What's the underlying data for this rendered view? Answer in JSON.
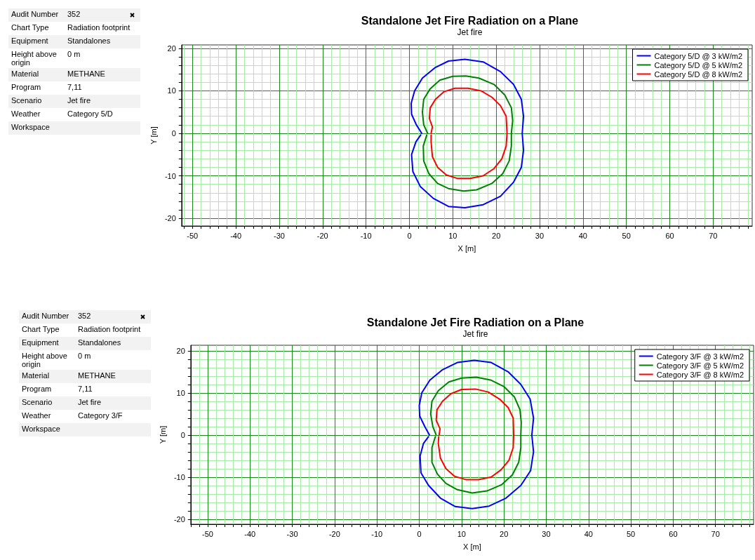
{
  "chart_data": [
    {
      "type": "other",
      "cell_labels": [
        [
          "Audit Number",
          "352"
        ],
        [
          "Chart Type",
          "Radiation footprint"
        ],
        [
          "Equipment",
          "Standalones"
        ],
        [
          "Height above origin",
          "0 m"
        ],
        [
          "Material",
          "METHANE"
        ],
        [
          "Program",
          "7,11"
        ],
        [
          "Scenario",
          "Jet fire"
        ],
        [
          "Weather",
          "Category 5/D"
        ],
        [
          "Workspace",
          null
        ]
      ]
    },
    {
      "type": "line",
      "title": "Standalone Jet Fire Radiation on a Plane",
      "subtitle": "Jet fire",
      "xlabel": "X [m]",
      "ylabel": "Y [m]",
      "xlim": [
        -52.5,
        79
      ],
      "ylim": [
        -21.8,
        20.8
      ],
      "xticks": [
        {
          "value": -52,
          "label": null
        },
        -50,
        {
          "value": -48,
          "label": null
        },
        {
          "value": -46,
          "label": null
        },
        {
          "value": -44,
          "label": null
        },
        {
          "value": -42,
          "label": null
        },
        -40,
        {
          "value": -38,
          "label": null
        },
        {
          "value": -36,
          "label": null
        },
        {
          "value": -34,
          "label": null
        },
        {
          "value": -32,
          "label": null
        },
        -30,
        {
          "value": -28,
          "label": null
        },
        {
          "value": -26,
          "label": null
        },
        {
          "value": -24,
          "label": null
        },
        {
          "value": -22,
          "label": null
        },
        -20,
        {
          "value": -18,
          "label": null
        },
        {
          "value": -16,
          "label": null
        },
        {
          "value": -14,
          "label": null
        },
        {
          "value": -12,
          "label": null
        },
        -10,
        {
          "value": -8,
          "label": null
        },
        {
          "value": -6,
          "label": null
        },
        {
          "value": -4,
          "label": null
        },
        {
          "value": -2,
          "label": null
        },
        0,
        {
          "value": 2,
          "label": null
        },
        {
          "value": 4,
          "label": null
        },
        {
          "value": 6,
          "label": null
        },
        {
          "value": 8,
          "label": null
        },
        10,
        {
          "value": 12,
          "label": null
        },
        {
          "value": 14,
          "label": null
        },
        {
          "value": 16,
          "label": null
        },
        {
          "value": 18,
          "label": null
        },
        20,
        {
          "value": 22,
          "label": null
        },
        {
          "value": 24,
          "label": null
        },
        {
          "value": 26,
          "label": null
        },
        {
          "value": 28,
          "label": null
        },
        30,
        {
          "value": 32,
          "label": null
        },
        {
          "value": 34,
          "label": null
        },
        {
          "value": 36,
          "label": null
        },
        {
          "value": 38,
          "label": null
        },
        40,
        {
          "value": 42,
          "label": null
        },
        {
          "value": 44,
          "label": null
        },
        {
          "value": 46,
          "label": null
        },
        {
          "value": 48,
          "label": null
        },
        50,
        {
          "value": 52,
          "label": null
        },
        {
          "value": 54,
          "label": null
        },
        {
          "value": 56,
          "label": null
        },
        {
          "value": 58,
          "label": null
        },
        60,
        {
          "value": 62,
          "label": null
        },
        {
          "value": 64,
          "label": null
        },
        {
          "value": 66,
          "label": null
        },
        {
          "value": 68,
          "label": null
        },
        70,
        {
          "value": 72,
          "label": null
        },
        {
          "value": 74,
          "label": null
        },
        {
          "value": 76,
          "label": null
        },
        {
          "value": 78,
          "label": null
        }
      ],
      "yticks": [
        -20,
        {
          "value": -18,
          "label": null
        },
        {
          "value": -16,
          "label": null
        },
        {
          "value": -14,
          "label": null
        },
        {
          "value": -12,
          "label": null
        },
        -10,
        {
          "value": -8,
          "label": null
        },
        {
          "value": -6,
          "label": null
        },
        {
          "value": -4,
          "label": null
        },
        {
          "value": -2,
          "label": null
        },
        0,
        {
          "value": 2,
          "label": null
        },
        {
          "value": 4,
          "label": null
        },
        {
          "value": 6,
          "label": null
        },
        {
          "value": 8,
          "label": null
        },
        10,
        {
          "value": 12,
          "label": null
        },
        {
          "value": 14,
          "label": null
        },
        {
          "value": 16,
          "label": null
        },
        {
          "value": 18,
          "label": null
        },
        20
      ],
      "grid": true,
      "legend": "top right",
      "marker": "none",
      "line_style": "solid",
      "series": [
        {
          "name": "Category 5/D @ 3 kW/m2",
          "color": "#0000ff",
          "x": [
            2.85,
            1.6,
            0.5,
            0.4,
            1.2,
            3,
            6,
            9,
            12.8,
            17,
            21,
            24,
            25.8,
            26.3,
            26,
            26.3,
            25.8,
            24,
            21,
            17,
            12.8,
            9,
            5.5,
            2.5,
            0.8,
            0.5,
            1.5,
            2.6
          ],
          "values": [
            0,
            2,
            4.5,
            7,
            10,
            13,
            15.5,
            17,
            17.4,
            16.8,
            14.5,
            11.5,
            8,
            4,
            0,
            -4,
            -8,
            -11.5,
            -14.8,
            -16.8,
            -17.5,
            -17.2,
            -15.3,
            -12.5,
            -9,
            -5,
            -2,
            -0.4
          ]
        },
        {
          "name": "Category 5/D @ 5 kW/m2",
          "color": "#008000",
          "x": [
            4.2,
            3.3,
            3,
            3.3,
            4.8,
            7,
            10,
            13,
            16,
            19.5,
            22,
            23.5,
            23.8,
            23.5,
            23.5,
            23,
            21.5,
            19,
            15.5,
            12.5,
            9,
            6.5,
            4.5,
            3.3,
            3.2,
            4
          ],
          "values": [
            0,
            2,
            5,
            8,
            10.5,
            12.5,
            13.4,
            13.5,
            13,
            11.5,
            9,
            6,
            3,
            0,
            -3,
            -6.5,
            -9.5,
            -11.8,
            -13.3,
            -13.6,
            -13,
            -11.8,
            -9.5,
            -6.5,
            -3,
            -0.4
          ]
        },
        {
          "name": "Category 5/D @ 8 kW/m2",
          "color": "#ff0000",
          "x": [
            5,
            5.3,
            4.6,
            4.8,
            6,
            8,
            10.5,
            13.5,
            16.5,
            19,
            21,
            22.3,
            22.5,
            22.3,
            21.3,
            19.5,
            17,
            14,
            11,
            8.5,
            6.5,
            5.3,
            5,
            5
          ],
          "values": [
            0,
            1.5,
            3.5,
            6,
            8,
            9.8,
            10.6,
            10.6,
            10,
            8.5,
            6.5,
            4,
            0,
            -3,
            -6,
            -8.3,
            -10,
            -10.6,
            -10.6,
            -9.8,
            -8,
            -5.5,
            -2,
            -0.4
          ]
        }
      ]
    },
    {
      "type": "other",
      "cell_labels": [
        [
          "Audit Number",
          "352"
        ],
        [
          "Chart Type",
          "Radiation footprint"
        ],
        [
          "Equipment",
          "Standalones"
        ],
        [
          "Height above origin",
          "0 m"
        ],
        [
          "Material",
          "METHANE"
        ],
        [
          "Program",
          "7,11"
        ],
        [
          "Scenario",
          "Jet fire"
        ],
        [
          "Weather",
          "Category 3/F"
        ],
        [
          "Workspace",
          null
        ]
      ]
    },
    {
      "type": "line",
      "title": "Standalone Jet Fire Radiation on a Plane",
      "subtitle": "Jet fire",
      "xlabel": "X [m]",
      "ylabel": "Y [m]",
      "xlim": [
        -54,
        79
      ],
      "ylim": [
        -21.2,
        21.3
      ],
      "xticks": [
        {
          "value": -54,
          "label": null
        },
        {
          "value": -52,
          "label": null
        },
        -50,
        {
          "value": -48,
          "label": null
        },
        {
          "value": -46,
          "label": null
        },
        {
          "value": -44,
          "label": null
        },
        {
          "value": -42,
          "label": null
        },
        -40,
        {
          "value": -38,
          "label": null
        },
        {
          "value": -36,
          "label": null
        },
        {
          "value": -34,
          "label": null
        },
        {
          "value": -32,
          "label": null
        },
        -30,
        {
          "value": -28,
          "label": null
        },
        {
          "value": -26,
          "label": null
        },
        {
          "value": -24,
          "label": null
        },
        {
          "value": -22,
          "label": null
        },
        -20,
        {
          "value": -18,
          "label": null
        },
        {
          "value": -16,
          "label": null
        },
        {
          "value": -14,
          "label": null
        },
        {
          "value": -12,
          "label": null
        },
        -10,
        {
          "value": -8,
          "label": null
        },
        {
          "value": -6,
          "label": null
        },
        {
          "value": -4,
          "label": null
        },
        {
          "value": -2,
          "label": null
        },
        0,
        {
          "value": 2,
          "label": null
        },
        {
          "value": 4,
          "label": null
        },
        {
          "value": 6,
          "label": null
        },
        {
          "value": 8,
          "label": null
        },
        10,
        {
          "value": 12,
          "label": null
        },
        {
          "value": 14,
          "label": null
        },
        {
          "value": 16,
          "label": null
        },
        {
          "value": 18,
          "label": null
        },
        20,
        {
          "value": 22,
          "label": null
        },
        {
          "value": 24,
          "label": null
        },
        {
          "value": 26,
          "label": null
        },
        {
          "value": 28,
          "label": null
        },
        30,
        {
          "value": 32,
          "label": null
        },
        {
          "value": 34,
          "label": null
        },
        {
          "value": 36,
          "label": null
        },
        {
          "value": 38,
          "label": null
        },
        40,
        {
          "value": 42,
          "label": null
        },
        {
          "value": 44,
          "label": null
        },
        {
          "value": 46,
          "label": null
        },
        {
          "value": 48,
          "label": null
        },
        50,
        {
          "value": 52,
          "label": null
        },
        {
          "value": 54,
          "label": null
        },
        {
          "value": 56,
          "label": null
        },
        {
          "value": 58,
          "label": null
        },
        60,
        {
          "value": 62,
          "label": null
        },
        {
          "value": 64,
          "label": null
        },
        {
          "value": 66,
          "label": null
        },
        {
          "value": 68,
          "label": null
        },
        70,
        {
          "value": 72,
          "label": null
        },
        {
          "value": 74,
          "label": null
        },
        {
          "value": 76,
          "label": null
        },
        {
          "value": 78,
          "label": null
        }
      ],
      "yticks": [
        -20,
        {
          "value": -18,
          "label": null
        },
        {
          "value": -16,
          "label": null
        },
        {
          "value": -14,
          "label": null
        },
        {
          "value": -12,
          "label": null
        },
        -10,
        {
          "value": -8,
          "label": null
        },
        {
          "value": -6,
          "label": null
        },
        {
          "value": -4,
          "label": null
        },
        {
          "value": -2,
          "label": null
        },
        0,
        {
          "value": 2,
          "label": null
        },
        {
          "value": 4,
          "label": null
        },
        {
          "value": 6,
          "label": null
        },
        {
          "value": 8,
          "label": null
        },
        10,
        {
          "value": 12,
          "label": null
        },
        {
          "value": 14,
          "label": null
        },
        {
          "value": 16,
          "label": null
        },
        {
          "value": 18,
          "label": null
        },
        20
      ],
      "grid": true,
      "legend": "top right",
      "marker": "none",
      "line_style": "solid",
      "series": [
        {
          "name": "Category 3/F @ 3 kW/m2",
          "color": "#0000ff",
          "x": [
            2.4,
            1.3,
            0.1,
            0,
            0.6,
            2.5,
            5.5,
            9,
            13,
            17,
            21,
            24,
            26.2,
            27,
            26.6,
            27,
            26.3,
            24,
            20.5,
            16.5,
            12.5,
            8.5,
            5,
            2.2,
            0.4,
            0.2,
            1,
            2.2
          ],
          "values": [
            0,
            2,
            4.5,
            7,
            10,
            13,
            15.5,
            17.2,
            17.7,
            17.2,
            15,
            12,
            8.5,
            4,
            0,
            -4,
            -8.5,
            -12,
            -15,
            -16.9,
            -17.5,
            -17,
            -15,
            -12,
            -9,
            -5,
            -2,
            -0.4
          ]
        },
        {
          "name": "Category 3/F @ 5 kW/m2",
          "color": "#008000",
          "x": [
            4,
            3.2,
            2.7,
            3,
            4.5,
            7,
            10,
            13.5,
            17,
            20,
            22.5,
            23.8,
            24.1,
            24,
            24,
            23.5,
            22,
            19.5,
            16,
            12.5,
            9,
            6.3,
            4.3,
            3,
            3,
            3.8
          ],
          "values": [
            0,
            2,
            5,
            8,
            10.5,
            12.6,
            13.5,
            13.7,
            13,
            11.5,
            9,
            6,
            3,
            0,
            -3,
            -6.5,
            -9.5,
            -11.8,
            -13.3,
            -13.8,
            -13,
            -11.5,
            -9.3,
            -6.5,
            -3,
            -0.4
          ]
        },
        {
          "name": "Category 3/F @ 8 kW/m2",
          "color": "#ff0000",
          "x": [
            4.7,
            4.9,
            4,
            4.2,
            5.5,
            7.5,
            10,
            13.3,
            16.3,
            19,
            21,
            22.2,
            22.3,
            22.2,
            21.2,
            19.3,
            17,
            14,
            11,
            8.3,
            6.3,
            5,
            4.5,
            4.6
          ],
          "values": [
            0,
            1.5,
            3.5,
            6,
            8,
            9.8,
            10.8,
            10.9,
            10.2,
            8.5,
            6.5,
            4,
            0,
            -3,
            -6,
            -8.3,
            -10,
            -10.6,
            -10.6,
            -9.8,
            -8,
            -5.5,
            -2,
            -0.4
          ]
        }
      ]
    }
  ]
}
